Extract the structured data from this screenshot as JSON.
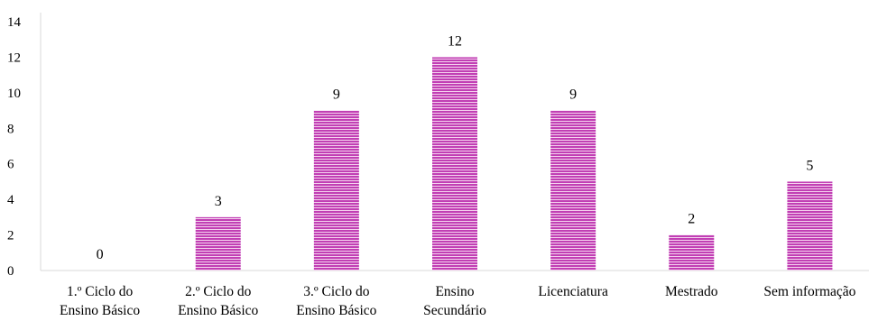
{
  "chart_data": {
    "type": "bar",
    "categories": [
      [
        "1.º Ciclo do",
        "Ensino Básico"
      ],
      [
        "2.º Ciclo do",
        "Ensino Básico"
      ],
      [
        "3.º Ciclo do",
        "Ensino Básico"
      ],
      [
        "Ensino",
        "Secundário"
      ],
      [
        "Licenciatura"
      ],
      [
        "Mestrado"
      ],
      [
        "Sem informação"
      ]
    ],
    "values": [
      0,
      3,
      9,
      12,
      9,
      2,
      5
    ],
    "data_labels": [
      "0",
      "3",
      "9",
      "12",
      "9",
      "2",
      "5"
    ],
    "ylim": [
      0,
      14
    ],
    "y_ticks": [
      0,
      2,
      4,
      6,
      8,
      10,
      12,
      14
    ],
    "grid": false,
    "legend": "none",
    "bar_color": "#c13fb4",
    "bar_stripe_color": "#f4d2ee",
    "axis_color": "#d9d9d9"
  }
}
